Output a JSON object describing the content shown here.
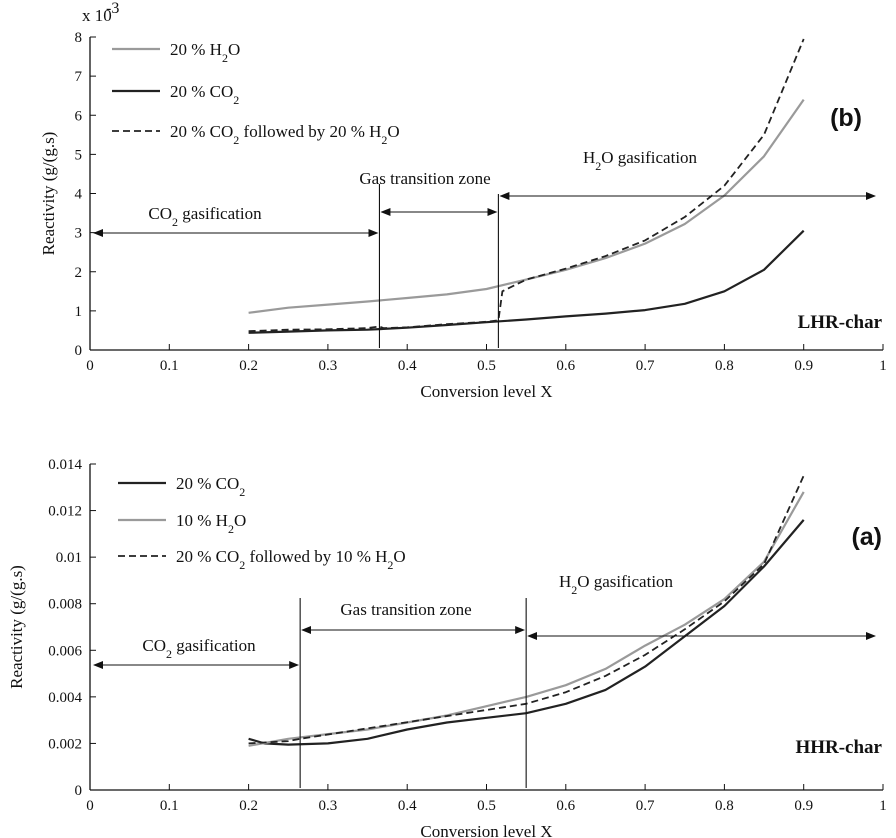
{
  "chart_data": [
    {
      "type": "line",
      "panel_label": "(b)",
      "char_label": "LHR-char",
      "xlabel": "Conversion level X",
      "ylabel": "Reactivity (g/(g.s)",
      "y_multiplier": "x 10",
      "y_multiplier_exponent": "-3",
      "xlim": [
        0,
        1
      ],
      "ylim": [
        0,
        8
      ],
      "xticks": [
        "0",
        "0.1",
        "0.2",
        "0.3",
        "0.4",
        "0.5",
        "0.6",
        "0.7",
        "0.8",
        "0.9",
        "1"
      ],
      "yticks": [
        "0",
        "1",
        "2",
        "3",
        "4",
        "5",
        "6",
        "7",
        "8"
      ],
      "legend": [
        "20 % H₂O",
        "20 % CO₂",
        "20 % CO₂ followed by 20 % H₂O"
      ],
      "series": [
        {
          "name": "20 % H₂O",
          "color": "#9a9a9a",
          "dash": "solid",
          "x": [
            0.2,
            0.25,
            0.3,
            0.35,
            0.4,
            0.45,
            0.5,
            0.55,
            0.6,
            0.65,
            0.7,
            0.75,
            0.8,
            0.85,
            0.9
          ],
          "y": [
            0.95,
            1.08,
            1.16,
            1.24,
            1.33,
            1.42,
            1.56,
            1.8,
            2.05,
            2.35,
            2.72,
            3.22,
            3.95,
            4.95,
            6.4
          ]
        },
        {
          "name": "20 % CO₂",
          "color": "#222222",
          "dash": "solid",
          "x": [
            0.2,
            0.25,
            0.3,
            0.35,
            0.4,
            0.45,
            0.5,
            0.55,
            0.6,
            0.65,
            0.7,
            0.75,
            0.8,
            0.85,
            0.9
          ],
          "y": [
            0.44,
            0.47,
            0.5,
            0.52,
            0.57,
            0.64,
            0.71,
            0.78,
            0.86,
            0.93,
            1.02,
            1.18,
            1.5,
            2.05,
            3.05
          ]
        },
        {
          "name": "20 % CO₂ followed by 20 % H₂O",
          "color": "#222222",
          "dash": "dashed",
          "x": [
            0.2,
            0.25,
            0.3,
            0.35,
            0.365,
            0.37,
            0.4,
            0.45,
            0.5,
            0.515,
            0.52,
            0.55,
            0.6,
            0.65,
            0.7,
            0.75,
            0.8,
            0.85,
            0.9
          ],
          "y": [
            0.48,
            0.52,
            0.53,
            0.56,
            0.6,
            0.56,
            0.58,
            0.66,
            0.72,
            0.76,
            1.5,
            1.8,
            2.08,
            2.4,
            2.8,
            3.4,
            4.2,
            5.5,
            7.95
          ]
        }
      ],
      "zones": {
        "boundaries": [
          0.365,
          0.515
        ],
        "co2_label": "CO₂ gasification",
        "transition_label": "Gas transition zone",
        "h2o_label": "H₂O gasification"
      }
    },
    {
      "type": "line",
      "panel_label": "(a)",
      "char_label": "HHR-char",
      "xlabel": "Conversion level X",
      "ylabel": "Reactivity (g/(g.s)",
      "xlim": [
        0,
        1
      ],
      "ylim": [
        0,
        0.014
      ],
      "xticks": [
        "0",
        "0.1",
        "0.2",
        "0.3",
        "0.4",
        "0.5",
        "0.6",
        "0.7",
        "0.8",
        "0.9",
        "1"
      ],
      "yticks": [
        "0",
        "0.002",
        "0.004",
        "0.006",
        "0.008",
        "0.01",
        "0.012",
        "0.014"
      ],
      "legend": [
        "20 % CO₂",
        "10 % H₂O",
        "20 % CO₂ followed by 10 % H₂O"
      ],
      "series": [
        {
          "name": "20 % CO₂",
          "color": "#222222",
          "dash": "solid",
          "x": [
            0.2,
            0.22,
            0.25,
            0.3,
            0.35,
            0.4,
            0.45,
            0.5,
            0.55,
            0.6,
            0.65,
            0.7,
            0.75,
            0.8,
            0.85,
            0.9
          ],
          "y": [
            0.0022,
            0.002,
            0.00195,
            0.002,
            0.0022,
            0.0026,
            0.0029,
            0.0031,
            0.0033,
            0.0037,
            0.0043,
            0.0053,
            0.0066,
            0.0079,
            0.0096,
            0.0116
          ]
        },
        {
          "name": "10 % H₂O",
          "color": "#9a9a9a",
          "dash": "solid",
          "x": [
            0.2,
            0.25,
            0.3,
            0.35,
            0.4,
            0.45,
            0.5,
            0.55,
            0.6,
            0.65,
            0.7,
            0.75,
            0.8,
            0.85,
            0.9
          ],
          "y": [
            0.0019,
            0.0022,
            0.0024,
            0.0026,
            0.0029,
            0.0032,
            0.0036,
            0.004,
            0.0045,
            0.0052,
            0.0062,
            0.0071,
            0.0082,
            0.0098,
            0.0128
          ]
        },
        {
          "name": "20 % CO₂ followed by 10 % H₂O",
          "color": "#222222",
          "dash": "dashed",
          "x": [
            0.2,
            0.25,
            0.265,
            0.55,
            0.6,
            0.65,
            0.7,
            0.75,
            0.8,
            0.85,
            0.9
          ],
          "y": [
            0.002,
            0.0021,
            0.0022,
            0.0037,
            0.0042,
            0.0049,
            0.0058,
            0.0069,
            0.0081,
            0.0097,
            0.0135
          ]
        }
      ],
      "zones": {
        "boundaries": [
          0.265,
          0.55
        ],
        "co2_label": "CO₂ gasification",
        "transition_label": "Gas transition zone",
        "h2o_label": "H₂O gasification"
      }
    }
  ]
}
